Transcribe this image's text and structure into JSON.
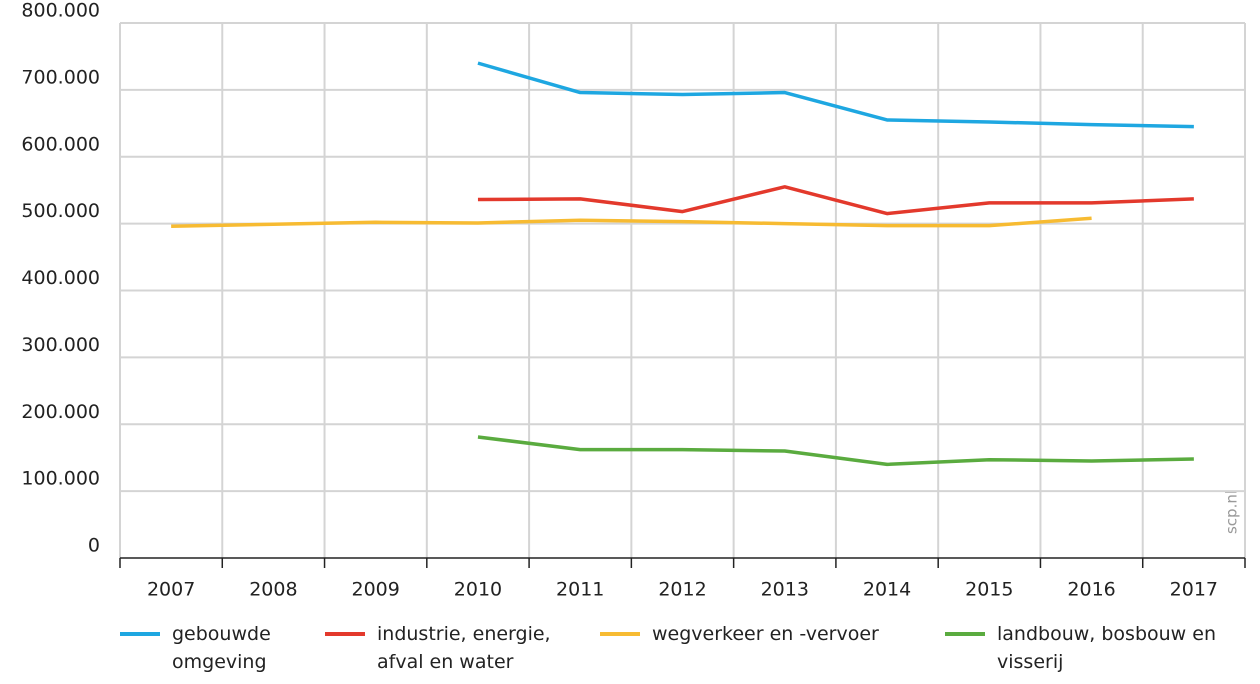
{
  "chart_data": {
    "type": "line",
    "categories": [
      "2007",
      "2008",
      "2009",
      "2010",
      "2011",
      "2012",
      "2013",
      "2014",
      "2015",
      "2016",
      "2017"
    ],
    "series": [
      {
        "name": "gebouwde omgeving",
        "color": "#1ea7e1",
        "values": [
          null,
          null,
          null,
          740000,
          696000,
          693000,
          696000,
          655000,
          652000,
          648000,
          645000
        ]
      },
      {
        "name": "industrie, energie, afval en water",
        "color": "#e3392c",
        "values": [
          null,
          null,
          null,
          536000,
          537000,
          518000,
          555000,
          515000,
          531000,
          531000,
          537000
        ]
      },
      {
        "name": "wegverkeer en -vervoer",
        "color": "#f7bb32",
        "values": [
          496000,
          499000,
          502000,
          501000,
          505000,
          503000,
          500000,
          497000,
          497000,
          508000,
          null
        ]
      },
      {
        "name": "landbouw, bosbouw en visserij",
        "color": "#5aab3f",
        "values": [
          null,
          null,
          null,
          181000,
          162000,
          162000,
          160000,
          140000,
          147000,
          145000,
          148000
        ]
      }
    ],
    "ylim": [
      0,
      800000
    ],
    "yticks": [
      0,
      {
        "value": 100000,
        "label": "100.000"
      },
      {
        "value": 200000,
        "label": "200.000"
      },
      {
        "value": 300000,
        "label": "300.000"
      },
      {
        "value": 400000,
        "label": "400.000"
      },
      {
        "value": 500000,
        "label": "500.000"
      },
      {
        "value": 600000,
        "label": "600.000"
      },
      {
        "value": 700000,
        "label": "700.000"
      },
      {
        "value": 800000,
        "label": "800.000"
      }
    ],
    "grid": true,
    "watermark": "scp.nl"
  }
}
